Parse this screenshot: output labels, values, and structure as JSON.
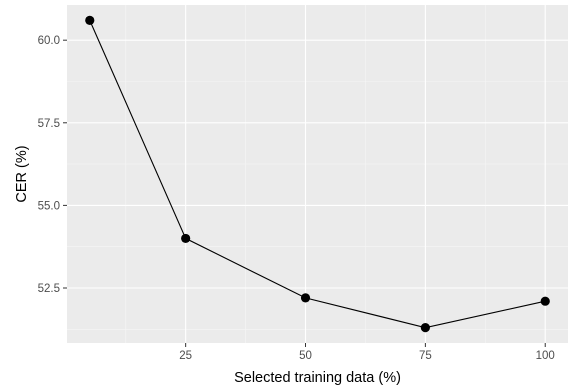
{
  "chart_data": {
    "type": "line",
    "title": "",
    "xlabel": "Selected training data (%)",
    "ylabel": "CER (%)",
    "x": [
      5,
      25,
      50,
      75,
      100
    ],
    "series": [
      {
        "name": "",
        "values": [
          60.6,
          54.0,
          52.2,
          51.3,
          52.1
        ]
      }
    ],
    "x_ticks": [
      25,
      50,
      75,
      100
    ],
    "x_tick_labels": [
      "25",
      "50",
      "75",
      "100"
    ],
    "x_minor_ticks": [
      12.5,
      37.5,
      62.5,
      87.5
    ],
    "y_ticks": [
      52.5,
      55.0,
      57.5,
      60.0
    ],
    "y_tick_labels": [
      "52.5",
      "55.0",
      "57.5",
      "60.0"
    ],
    "y_minor_ticks": [
      51.25,
      53.75,
      56.25,
      58.75,
      61.25
    ],
    "xlim": [
      0.25,
      104.75
    ],
    "ylim": [
      50.835,
      61.065
    ],
    "grid": true,
    "legend": "none",
    "colors": {
      "panel_background": "#ebebeb",
      "grid_major": "#ffffff",
      "grid_minor": "#f5f5f5",
      "line": "#000000",
      "point": "#000000",
      "tick_mark": "#333333"
    }
  }
}
